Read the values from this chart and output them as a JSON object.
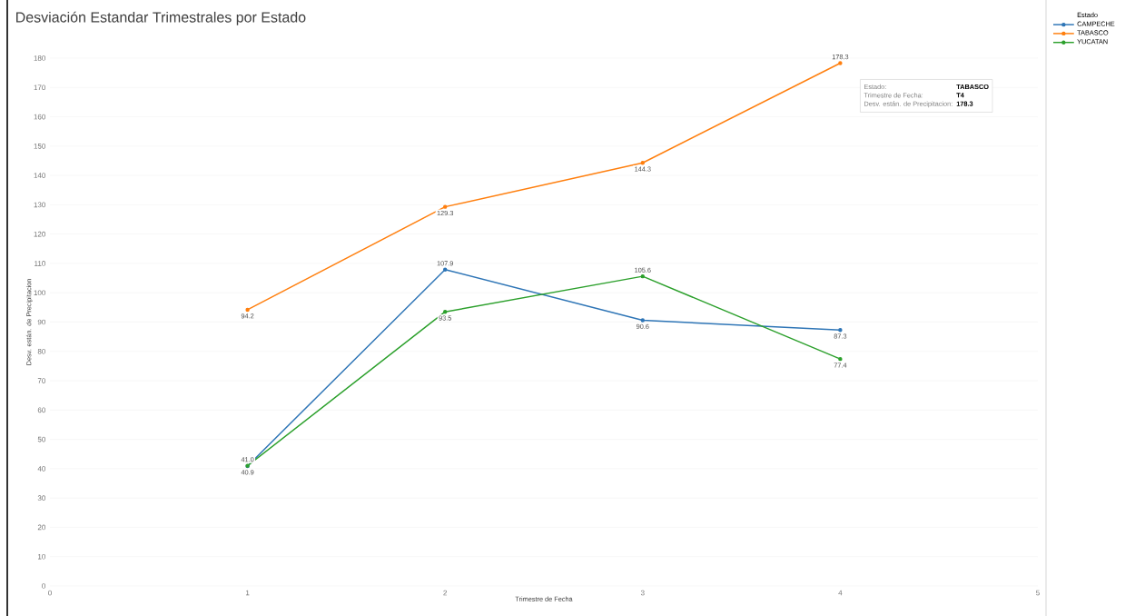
{
  "chart_data": {
    "type": "line",
    "title": "Desviación Estandar Trimestrales por Estado",
    "xlabel": "Trimestre de Fecha",
    "ylabel": "Desv. están. de Precipitacion",
    "legend_title": "Estado",
    "x": [
      1,
      2,
      3,
      4
    ],
    "series": [
      {
        "name": "CAMPECHE",
        "color": "#2e75b6",
        "values": [
          40.9,
          107.9,
          90.6,
          87.3
        ],
        "value_labels": [
          "40.9",
          "107.9",
          "90.6",
          "87.3"
        ]
      },
      {
        "name": "TABASCO",
        "color": "#ff7f0e",
        "values": [
          94.2,
          129.3,
          144.3,
          178.3
        ],
        "value_labels": [
          "94.2",
          "129.3",
          "144.3",
          "178.3"
        ]
      },
      {
        "name": "YUCATAN",
        "color": "#2ca02c",
        "values": [
          41.0,
          93.5,
          105.6,
          77.4
        ],
        "value_labels": [
          "41.0",
          "93.5",
          "105.6",
          "77.4"
        ]
      }
    ],
    "xlim": [
      0,
      5
    ],
    "xticks": [
      0,
      1,
      2,
      3,
      4,
      5
    ],
    "ylim": [
      0,
      180
    ],
    "yticks": [
      0,
      10,
      20,
      30,
      40,
      50,
      60,
      70,
      80,
      90,
      100,
      110,
      120,
      130,
      140,
      150,
      160,
      170,
      180
    ],
    "grid": "y",
    "legend": "top right",
    "marker": "circle",
    "line_style": "solid",
    "annotations": [
      "Estado:",
      "**TABASCO**",
      "Trimestre de Fecha:",
      "**T4**",
      "Desv. están. de Precipitacion:",
      "**178.3**"
    ]
  }
}
